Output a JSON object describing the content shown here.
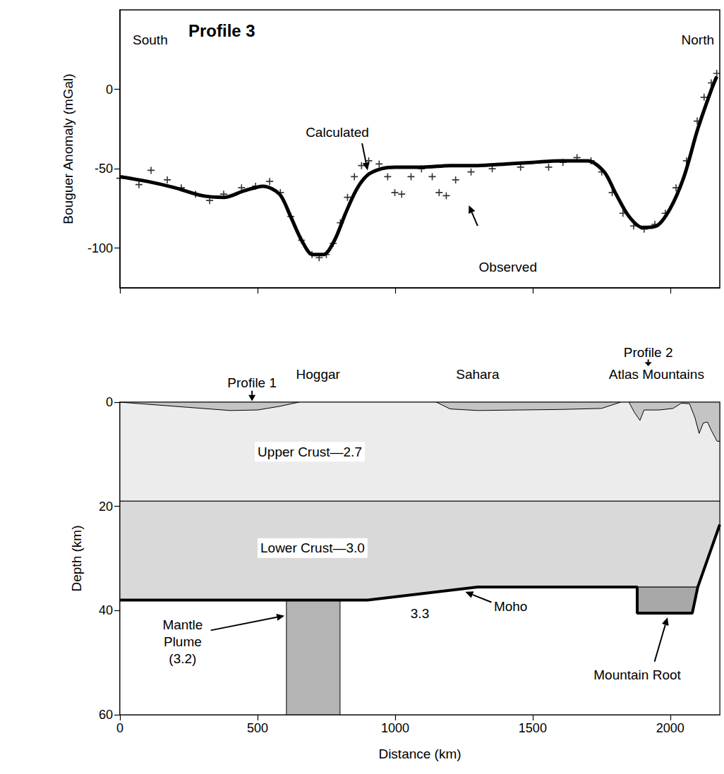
{
  "chart_data": [
    {
      "type": "line",
      "title": "Profile 3",
      "y_label": "Bouguer Anomaly (mGal)",
      "xlim": [
        0,
        2180
      ],
      "xticks": [
        0,
        500,
        1000,
        1500,
        2000
      ],
      "ylim": [
        -125,
        50
      ],
      "yticks": [
        -100,
        -50,
        0
      ],
      "tick_labels": "y",
      "grid": false,
      "annotations": [
        {
          "text": "South",
          "x": 110,
          "y": 31
        },
        {
          "text": "North",
          "x": 2100,
          "y": 31
        }
      ],
      "series": [
        {
          "name": "Calculated",
          "type": "line",
          "line_style": "solid",
          "color": "#000000",
          "x": [
            0,
            100,
            200,
            300,
            380,
            450,
            520,
            580,
            620,
            660,
            700,
            740,
            780,
            820,
            860,
            900,
            950,
            1000,
            1100,
            1200,
            1300,
            1400,
            1500,
            1600,
            1700,
            1760,
            1800,
            1850,
            1900,
            1950,
            2000,
            2050,
            2100,
            2150,
            2169
          ],
          "values": [
            -55,
            -58,
            -62,
            -67,
            -68,
            -64,
            -61,
            -66,
            -80,
            -95,
            -104,
            -104,
            -95,
            -78,
            -63,
            -54,
            -50,
            -49,
            -49,
            -48,
            -48,
            -47,
            -46,
            -45,
            -45,
            -52,
            -65,
            -80,
            -87,
            -86,
            -75,
            -55,
            -25,
            0,
            8
          ],
          "annotation": {
            "x": 790,
            "y": -27,
            "arrow_from": [
              880,
              -34
            ],
            "arrow_to": [
              900,
              -51
            ]
          }
        },
        {
          "name": "Observed",
          "type": "scatter",
          "marker": "cross",
          "color": "#000000",
          "x": [
            0,
            69,
            113,
            172,
            223,
            275,
            326,
            377,
            442,
            493,
            544,
            583,
            621,
            660,
            698,
            724,
            750,
            775,
            801,
            827,
            852,
            878,
            904,
            942,
            973,
            999,
            1024,
            1058,
            1096,
            1135,
            1160,
            1186,
            1220,
            1276,
            1353,
            1456,
            1558,
            1610,
            1661,
            1712,
            1751,
            1789,
            1828,
            1867,
            1905,
            1944,
            1982,
            2021,
            2059,
            2098,
            2123,
            2149,
            2169
          ],
          "values": [
            -56,
            -60,
            -51,
            -57,
            -62,
            -66,
            -70,
            -66,
            -62,
            -61,
            -58,
            -65,
            -80,
            -95,
            -104,
            -106,
            -104,
            -97,
            -84,
            -68,
            -55,
            -48,
            -45,
            -47,
            -55,
            -65,
            -66,
            -55,
            -50,
            -55,
            -65,
            -67,
            -57,
            -52,
            -50,
            -49,
            -49,
            -46,
            -43,
            -45,
            -52,
            -65,
            -78,
            -86,
            -88,
            -85,
            -78,
            -62,
            -45,
            -20,
            -5,
            4,
            10
          ],
          "annotation": {
            "x": 1410,
            "y": -112,
            "arrow_from": [
              1300,
              -86
            ],
            "arrow_to": [
              1268,
              -73
            ]
          }
        }
      ]
    },
    {
      "type": "cross_section",
      "x_label": "Distance (km)",
      "y_label": "Depth (km)",
      "xlim": [
        0,
        2180
      ],
      "xticks": [
        0,
        500,
        1000,
        1500,
        2000
      ],
      "ylim": [
        60,
        0
      ],
      "yticks": [
        0,
        20,
        40,
        60
      ],
      "grid": false,
      "layers": [
        {
          "label": "Upper Crust—2.7",
          "label_at": [
            690,
            9.5
          ],
          "color": "#ececec",
          "polygon": [
            [
              0,
              0
            ],
            [
              2180,
              0
            ],
            [
              2180,
              19
            ],
            [
              0,
              19
            ]
          ]
        },
        {
          "label": "Lower Crust—3.0",
          "label_at": [
            700,
            28
          ],
          "color": "#d9d9d9",
          "polygon": [
            [
              0,
              19
            ],
            [
              2180,
              19
            ],
            [
              2180,
              23.5
            ],
            [
              2100,
              35.5
            ],
            [
              1880,
              35.5
            ],
            [
              1300,
              35.5
            ],
            [
              900,
              38
            ],
            [
              0,
              38
            ]
          ]
        },
        {
          "label": "3.3",
          "label_at": [
            1090,
            40.5
          ],
          "color": "#ffffff",
          "polygon": [
            [
              0,
              38
            ],
            [
              900,
              38
            ],
            [
              1300,
              35.5
            ],
            [
              1880,
              35.5
            ],
            [
              1880,
              40.5
            ],
            [
              2080,
              40.5
            ],
            [
              2100,
              35.5
            ],
            [
              2180,
              23.5
            ],
            [
              2180,
              60
            ],
            [
              0,
              60
            ]
          ]
        },
        {
          "label": "Mantle\nPlume\n(3.2)",
          "label_at": [
            228,
            46
          ],
          "arrow_from": [
            330,
            43.8
          ],
          "arrow_to": [
            598,
            41
          ],
          "color": "#b4b4b4",
          "polygon": [
            [
              605,
              38
            ],
            [
              800,
              38
            ],
            [
              800,
              60
            ],
            [
              605,
              60
            ]
          ]
        },
        {
          "label": "Mountain Root",
          "label_at": [
            1880,
            52.4
          ],
          "arrow_from": [
            1943,
            49.8
          ],
          "arrow_to": [
            1990,
            41.3
          ],
          "color": "#a8a8a8",
          "polygon": [
            [
              1880,
              35.5
            ],
            [
              2100,
              35.5
            ],
            [
              2080,
              40.5
            ],
            [
              1880,
              40.5
            ]
          ]
        },
        {
          "color": "#c4c4c4",
          "polygon": [
            [
              0,
              0
            ],
            [
              100,
              0.4
            ],
            [
              250,
              1
            ],
            [
              400,
              1.6
            ],
            [
              500,
              1.5
            ],
            [
              580,
              0.8
            ],
            [
              650,
              0
            ]
          ]
        },
        {
          "color": "#c4c4c4",
          "polygon": [
            [
              1150,
              0
            ],
            [
              1200,
              1.3
            ],
            [
              1300,
              1.6
            ],
            [
              1450,
              1.5
            ],
            [
              1600,
              1.4
            ],
            [
              1750,
              1.2
            ],
            [
              1820,
              0
            ]
          ]
        },
        {
          "color": "#c4c4c4",
          "polygon": [
            [
              1850,
              0
            ],
            [
              1870,
              2
            ],
            [
              1890,
              3.5
            ],
            [
              1905,
              1.5
            ],
            [
              1960,
              1.5
            ],
            [
              2010,
              1.2
            ],
            [
              2040,
              0.2
            ],
            [
              2070,
              0.3
            ],
            [
              2090,
              3
            ],
            [
              2105,
              6
            ],
            [
              2120,
              4
            ],
            [
              2135,
              3.8
            ],
            [
              2150,
              5.5
            ],
            [
              2170,
              7.5
            ],
            [
              2180,
              7.5
            ],
            [
              2180,
              0
            ]
          ]
        }
      ],
      "lines": [
        {
          "name": "Moho",
          "color": "#000000",
          "line_style": "solid",
          "points": [
            [
              0,
              38
            ],
            [
              900,
              38
            ],
            [
              1300,
              35.5
            ],
            [
              1880,
              35.5
            ],
            [
              1880,
              40.5
            ],
            [
              2080,
              40.5
            ],
            [
              2100,
              35.5
            ],
            [
              2180,
              23.5
            ]
          ],
          "annotation": {
            "x": 1420,
            "y": 39.2,
            "arrow_from": [
              1350,
              38.4
            ],
            "arrow_to": [
              1255,
              36.4
            ]
          }
        }
      ],
      "annotations": [
        {
          "text": "Profile 1",
          "x": 480,
          "y": -3.7,
          "arrow_from": [
            480,
            -2.2
          ],
          "arrow_to": [
            480,
            -0.2
          ]
        },
        {
          "text": "Hoggar",
          "x": 720,
          "y": -5.3
        },
        {
          "text": "Sahara",
          "x": 1300,
          "y": -5.3
        },
        {
          "text": "Profile 2",
          "x": 1920,
          "y": -9.6,
          "arrow_from": [
            1920,
            -8.2
          ],
          "arrow_to": [
            1920,
            -6.9
          ]
        },
        {
          "text": "Atlas Mountains",
          "x": 1950,
          "y": -5.3
        }
      ]
    }
  ]
}
